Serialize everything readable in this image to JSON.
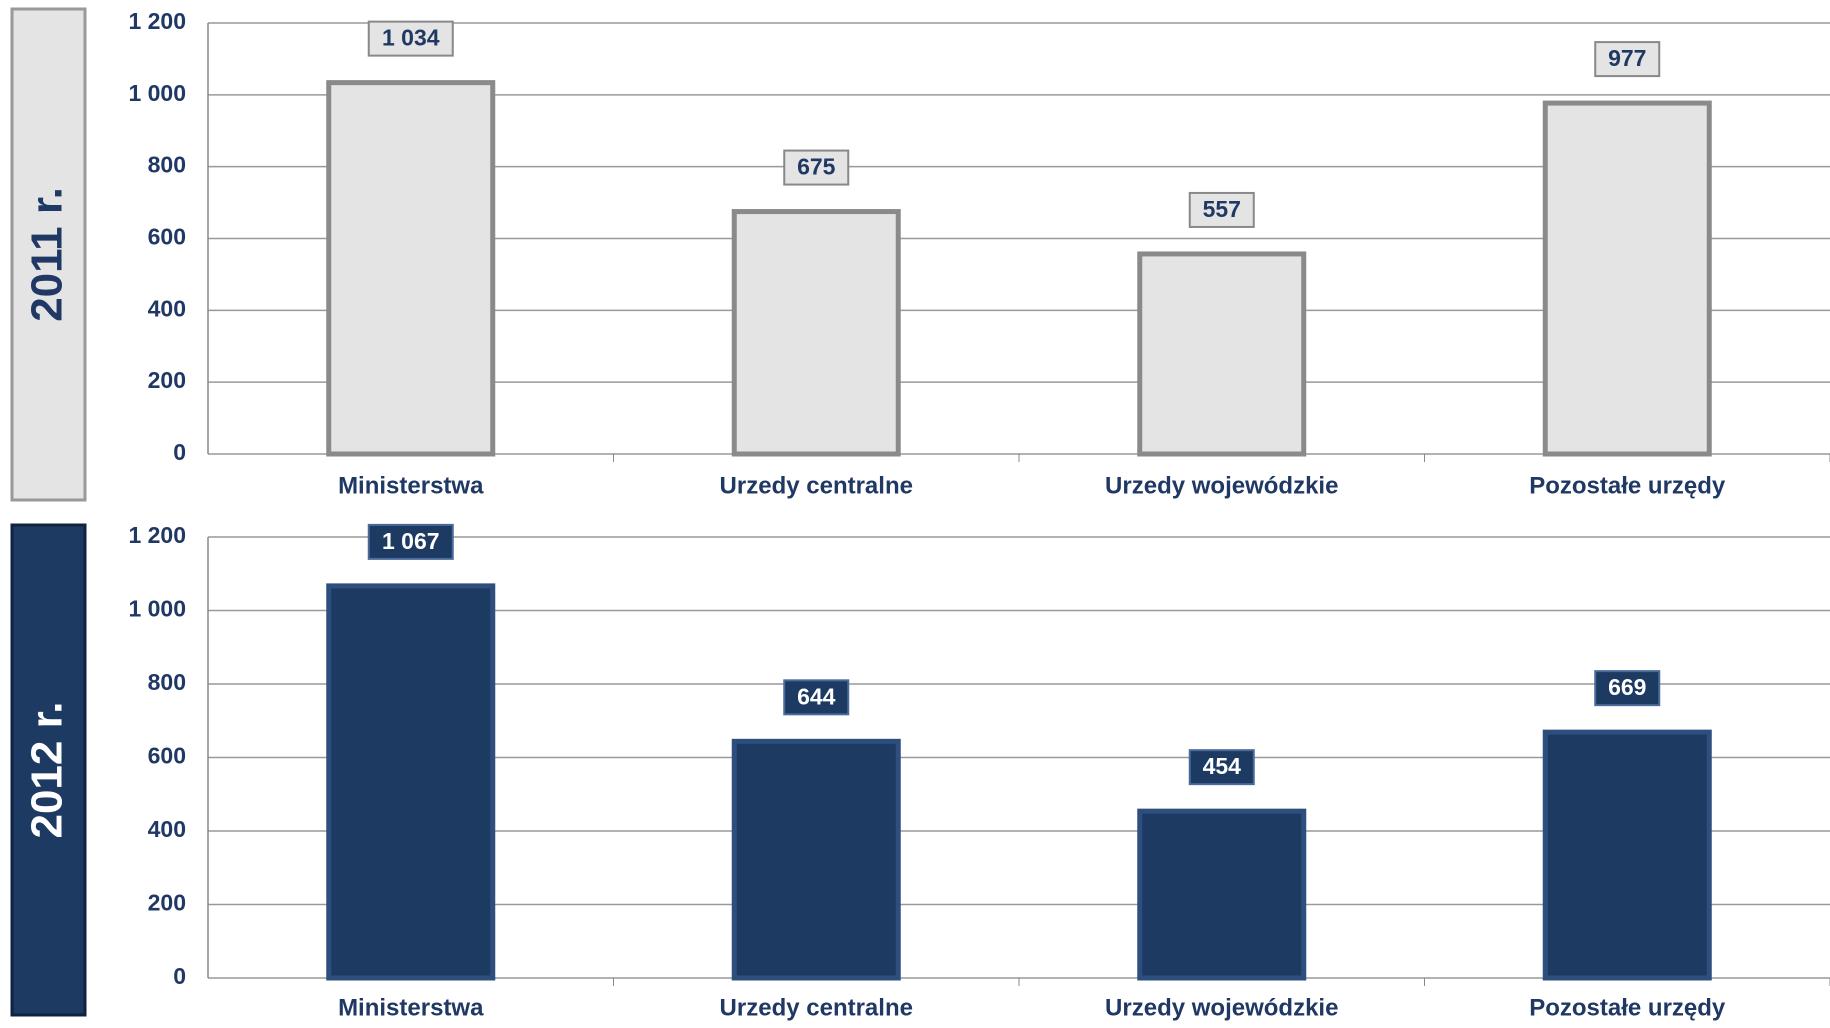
{
  "chart_data": [
    {
      "type": "bar",
      "panel_label": "2011 r.",
      "categories": [
        "Ministerstwa",
        "Urzedy centralne",
        "Urzedy wojewódzkie",
        "Pozostałe urzędy"
      ],
      "values": [
        1034,
        675,
        557,
        977
      ],
      "value_labels": [
        "1 034",
        "675",
        "557",
        "977"
      ],
      "color": "#e4e4e4",
      "ylim": [
        0,
        1200
      ],
      "yticks": [
        0,
        200,
        400,
        600,
        800,
        {
          "value": 1000,
          "label": "1 000"
        },
        {
          "value": 1200,
          "label": "1 200"
        }
      ],
      "grid": true
    },
    {
      "type": "bar",
      "panel_label": "2012 r.",
      "categories": [
        "Ministerstwa",
        "Urzedy centralne",
        "Urzedy wojewódzkie",
        "Pozostałe urzędy"
      ],
      "values": [
        1067,
        644,
        454,
        669
      ],
      "value_labels": [
        "1 067",
        "644",
        "454",
        "669"
      ],
      "color": "#1d3a62",
      "ylim": [
        0,
        1200
      ],
      "yticks": [
        0,
        200,
        400,
        600,
        800,
        {
          "value": 1000,
          "label": "1 000"
        },
        {
          "value": 1200,
          "label": "1 200"
        }
      ],
      "grid": true
    }
  ]
}
